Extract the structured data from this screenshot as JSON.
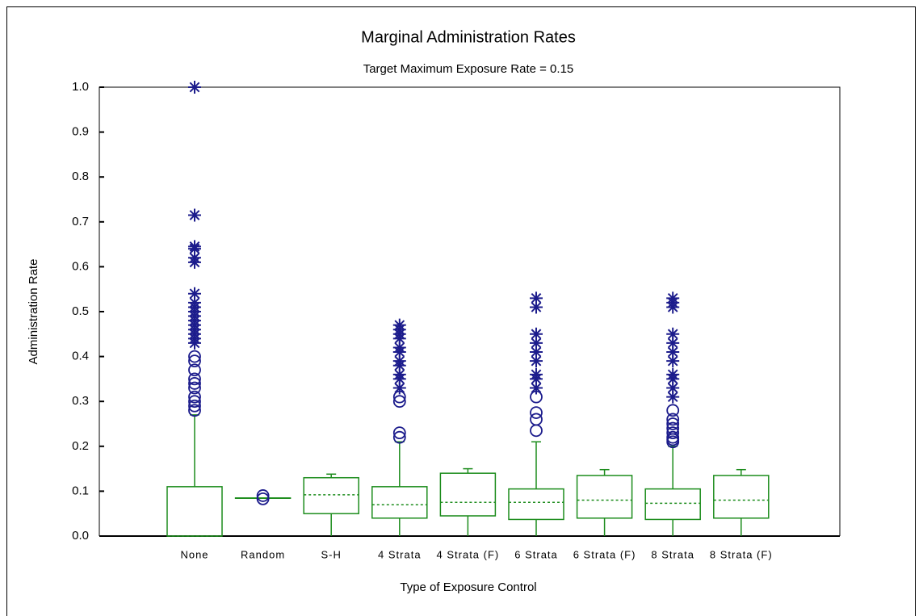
{
  "chart_data": {
    "type": "box",
    "title": "Marginal Administration Rates",
    "subtitle": "Target Maximum Exposure Rate = 0.15",
    "x_label": "Type of Exposure Control",
    "y_label": "Administration Rate",
    "categories": [
      "None",
      "Random",
      "S-H",
      "4 Strata",
      "4 Strata (F)",
      "6 Strata",
      "6 Strata (F)",
      "8 Strata",
      "8 Strata (F)"
    ],
    "box_color": "#1c8c1c",
    "outlier_color": "#1c1c8c",
    "ylim": [
      0,
      1
    ],
    "yticks": [
      {
        "value": 0,
        "label": "0.0"
      },
      0.1,
      0.2,
      0.3,
      0.4,
      0.5,
      0.6,
      0.7,
      0.8,
      0.9,
      {
        "value": 1,
        "label": "1.0"
      }
    ],
    "boxes": [
      {
        "whisker_low": 0,
        "q1": 0,
        "median": 0,
        "q3": 0.11,
        "whisker_high": 0.27,
        "outliers": [
          0.28,
          0.29,
          0.3,
          0.31,
          0.33,
          0.34,
          0.35,
          0.37,
          0.39,
          0.4
        ],
        "far_outliers": [
          0.43,
          0.44,
          0.45,
          0.46,
          0.47,
          0.48,
          0.49,
          0.5,
          0.51,
          0.52,
          0.54,
          0.61,
          0.62,
          0.64,
          0.645,
          0.715,
          1
        ]
      },
      {
        "whisker_low": 0.085,
        "q1": 0.085,
        "median": 0.085,
        "q3": 0.085,
        "whisker_high": 0.085,
        "outliers": [
          0.083,
          0.09
        ],
        "far_outliers": []
      },
      {
        "whisker_low": 0,
        "q1": 0.05,
        "median": 0.092,
        "q3": 0.13,
        "whisker_high": 0.138,
        "outliers": [],
        "far_outliers": []
      },
      {
        "whisker_low": 0,
        "q1": 0.04,
        "median": 0.07,
        "q3": 0.11,
        "whisker_high": 0.21,
        "outliers": [
          0.22,
          0.23,
          0.3,
          0.31
        ],
        "far_outliers": [
          0.33,
          0.35,
          0.36,
          0.38,
          0.39,
          0.41,
          0.42,
          0.44,
          0.45,
          0.46,
          0.47
        ]
      },
      {
        "whisker_low": 0,
        "q1": 0.045,
        "median": 0.075,
        "q3": 0.14,
        "whisker_high": 0.15,
        "outliers": [],
        "far_outliers": []
      },
      {
        "whisker_low": 0,
        "q1": 0.037,
        "median": 0.075,
        "q3": 0.105,
        "whisker_high": 0.21,
        "outliers": [
          0.235,
          0.26,
          0.275,
          0.31
        ],
        "far_outliers": [
          0.33,
          0.35,
          0.36,
          0.39,
          0.41,
          0.43,
          0.45,
          0.51,
          0.53
        ]
      },
      {
        "whisker_low": 0,
        "q1": 0.04,
        "median": 0.08,
        "q3": 0.135,
        "whisker_high": 0.148,
        "outliers": [],
        "far_outliers": []
      },
      {
        "whisker_low": 0,
        "q1": 0.037,
        "median": 0.073,
        "q3": 0.105,
        "whisker_high": 0.2,
        "outliers": [
          0.21,
          0.215,
          0.22,
          0.23,
          0.24,
          0.25,
          0.26,
          0.28
        ],
        "far_outliers": [
          0.31,
          0.33,
          0.35,
          0.36,
          0.39,
          0.41,
          0.43,
          0.45,
          0.51,
          0.52,
          0.53
        ]
      },
      {
        "whisker_low": 0,
        "q1": 0.04,
        "median": 0.08,
        "q3": 0.135,
        "whisker_high": 0.148,
        "outliers": [],
        "far_outliers": []
      }
    ]
  }
}
